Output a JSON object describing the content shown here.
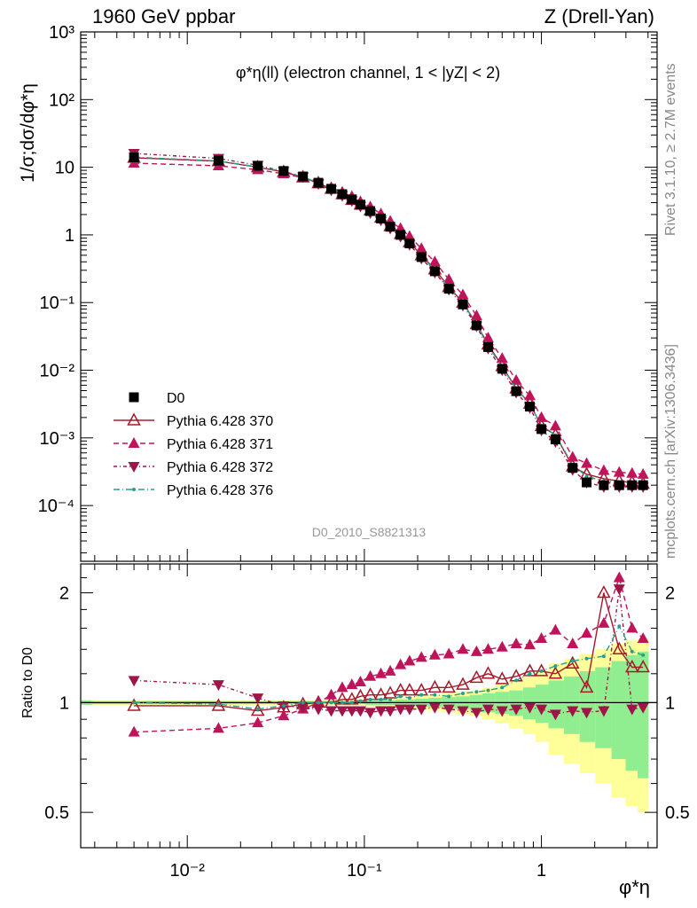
{
  "header": {
    "energy": "1960 GeV ppbar",
    "process": "Z (Drell-Yan)"
  },
  "side_labels": {
    "rivet": "Rivet 3.1.10, ≥ 2.7M events",
    "mcplots": "mcplots.cern.ch [arXiv:1306.3436]"
  },
  "chart_data": {
    "type": "line",
    "title": "φ*η(ll) (electron channel, 1 < |yZ| < 2)",
    "title_parts": {
      "main": "φ",
      "sup": "*",
      "sub": "η",
      "rest": "(ll) (electron channel, 1 < |y",
      "yz_sub": "Z",
      "end": "| < 2)"
    },
    "ylabel": "1/σ;dσ/dφ*η",
    "ratio_ylabel": "Ratio to D0",
    "xlabel": "φ*η",
    "analysis_id": "D0_2010_S8821313",
    "x_scale": "log",
    "y_scale": "log",
    "xlim": [
      0.0025,
      4.5
    ],
    "ylim": [
      1.5e-05,
      1000
    ],
    "ratio_ylim": [
      0.4,
      2.4
    ],
    "x_tick_labels": [
      "10⁻²",
      "10⁻¹",
      "1"
    ],
    "y_tick_labels": [
      "10⁻⁴",
      "10⁻³",
      "10⁻²",
      "10⁻¹",
      "1",
      "10",
      "10²",
      "10³"
    ],
    "ratio_tick_labels": [
      "0.5",
      "1",
      "2"
    ],
    "legend_position": "bottom-left",
    "x": [
      0.005,
      0.015,
      0.025,
      0.035,
      0.045,
      0.055,
      0.065,
      0.075,
      0.085,
      0.095,
      0.108,
      0.124,
      0.14,
      0.16,
      0.18,
      0.21,
      0.25,
      0.3,
      0.36,
      0.43,
      0.5,
      0.6,
      0.72,
      0.86,
      1.0,
      1.2,
      1.5,
      1.8,
      2.25,
      2.75,
      3.25,
      3.75
    ],
    "series": [
      {
        "name": "D0",
        "color": "#000000",
        "marker": "square",
        "values": [
          14,
          12.5,
          10.5,
          8.8,
          7.3,
          5.9,
          4.8,
          4.0,
          3.35,
          2.8,
          2.25,
          1.75,
          1.32,
          1.0,
          0.75,
          0.47,
          0.29,
          0.16,
          0.094,
          0.046,
          0.022,
          0.0105,
          0.0049,
          0.0029,
          0.00135,
          0.00095,
          0.00036,
          0.00022,
          0.0002,
          0.0002,
          0.0002,
          0.0002
        ],
        "ratio": [
          1,
          1,
          1,
          1,
          1,
          1,
          1,
          1,
          1,
          1,
          1,
          1,
          1,
          1,
          1,
          1,
          1,
          1,
          1,
          1,
          1,
          1,
          1,
          1,
          1,
          1,
          1,
          1,
          1,
          1,
          1,
          1
        ]
      },
      {
        "name": "Pythia 6.428 370",
        "color": "#a51a2a",
        "marker": "open-triangle-up",
        "values": [
          13.8,
          12.3,
          10.0,
          8.5,
          7.1,
          5.8,
          4.8,
          4.0,
          3.3,
          2.8,
          2.3,
          1.8,
          1.35,
          1.03,
          0.78,
          0.5,
          0.31,
          0.17,
          0.1,
          0.048,
          0.024,
          0.0115,
          0.0054,
          0.0032,
          0.0015,
          0.0011,
          0.00038,
          0.00029,
          0.00025,
          0.00023,
          0.00022,
          0.00021
        ],
        "ratio": [
          0.98,
          0.98,
          0.95,
          0.97,
          0.99,
          1.0,
          1.0,
          1.02,
          1.02,
          1.04,
          1.05,
          1.05,
          1.06,
          1.08,
          1.08,
          1.08,
          1.1,
          1.1,
          1.12,
          1.17,
          1.2,
          1.16,
          1.18,
          1.22,
          1.22,
          1.2,
          1.28,
          1.1,
          2.0,
          1.4,
          1.25,
          1.25
        ]
      },
      {
        "name": "Pythia 6.428 371",
        "color": "#c0145a",
        "marker": "triangle-up",
        "values": [
          11.5,
          10.5,
          9.2,
          8.0,
          7.0,
          5.9,
          5.0,
          4.3,
          3.7,
          3.1,
          2.6,
          2.05,
          1.6,
          1.25,
          0.95,
          0.63,
          0.4,
          0.22,
          0.13,
          0.064,
          0.03,
          0.015,
          0.0071,
          0.0042,
          0.002,
          0.0015,
          0.00052,
          0.00042,
          0.00033,
          0.00031,
          0.0003,
          0.00029
        ],
        "ratio": [
          0.83,
          0.85,
          0.88,
          0.92,
          0.96,
          1.0,
          1.05,
          1.1,
          1.12,
          1.14,
          1.18,
          1.2,
          1.22,
          1.27,
          1.3,
          1.33,
          1.35,
          1.36,
          1.4,
          1.38,
          1.4,
          1.42,
          1.45,
          1.44,
          1.5,
          1.58,
          1.45,
          1.55,
          1.65,
          2.2,
          1.6,
          1.5
        ]
      },
      {
        "name": "Pythia 6.428 372",
        "color": "#a0144a",
        "marker": "triangle-down",
        "values": [
          16.0,
          13.5,
          10.7,
          8.7,
          7.2,
          5.7,
          4.6,
          3.8,
          3.2,
          2.65,
          2.12,
          1.66,
          1.25,
          0.95,
          0.72,
          0.45,
          0.28,
          0.156,
          0.091,
          0.045,
          0.021,
          0.0101,
          0.0047,
          0.0028,
          0.0013,
          0.00088,
          0.00034,
          0.00022,
          0.00019,
          0.00019,
          0.00019,
          0.00019
        ],
        "ratio": [
          1.15,
          1.12,
          1.03,
          0.98,
          0.97,
          0.96,
          0.95,
          0.95,
          0.95,
          0.95,
          0.94,
          0.95,
          0.95,
          0.96,
          0.96,
          0.96,
          0.97,
          0.96,
          0.95,
          0.94,
          0.96,
          0.95,
          0.96,
          0.97,
          0.96,
          0.93,
          0.95,
          0.94,
          0.95,
          2.05,
          0.96,
          0.97
        ]
      },
      {
        "name": "Pythia 6.428 376",
        "color": "#2a9d8f",
        "marker": "dot",
        "values": [
          14.1,
          12.4,
          10.1,
          8.7,
          7.2,
          5.9,
          4.8,
          4.0,
          3.35,
          2.8,
          2.3,
          1.78,
          1.34,
          1.02,
          0.77,
          0.49,
          0.3,
          0.166,
          0.098,
          0.048,
          0.023,
          0.0112,
          0.0053,
          0.0032,
          0.0015,
          0.0011,
          0.0004,
          0.00027,
          0.00023,
          0.00022,
          0.00022,
          0.00022
        ],
        "ratio": [
          1.0,
          0.99,
          0.96,
          0.98,
          1.0,
          1.0,
          1.0,
          1.0,
          1.0,
          1.01,
          1.02,
          1.02,
          1.02,
          1.04,
          1.03,
          1.05,
          1.05,
          1.04,
          1.06,
          1.07,
          1.08,
          1.1,
          1.15,
          1.2,
          1.22,
          1.26,
          1.3,
          1.32,
          1.34,
          1.62,
          1.38,
          1.35
        ]
      }
    ],
    "uncertainty_bands": {
      "stat_color": "#90ee90",
      "total_color": "#ffff99",
      "stat_half_width": [
        0.01,
        0.01,
        0.01,
        0.01,
        0.01,
        0.01,
        0.01,
        0.01,
        0.01,
        0.01,
        0.015,
        0.015,
        0.015,
        0.02,
        0.02,
        0.025,
        0.03,
        0.035,
        0.04,
        0.05,
        0.06,
        0.07,
        0.08,
        0.1,
        0.12,
        0.15,
        0.18,
        0.22,
        0.25,
        0.3,
        0.35,
        0.38
      ],
      "total_half_width": [
        0.015,
        0.015,
        0.015,
        0.015,
        0.015,
        0.015,
        0.02,
        0.02,
        0.02,
        0.02,
        0.025,
        0.03,
        0.03,
        0.035,
        0.04,
        0.045,
        0.05,
        0.06,
        0.07,
        0.08,
        0.1,
        0.12,
        0.15,
        0.18,
        0.22,
        0.28,
        0.32,
        0.36,
        0.4,
        0.45,
        0.48,
        0.5
      ]
    }
  }
}
